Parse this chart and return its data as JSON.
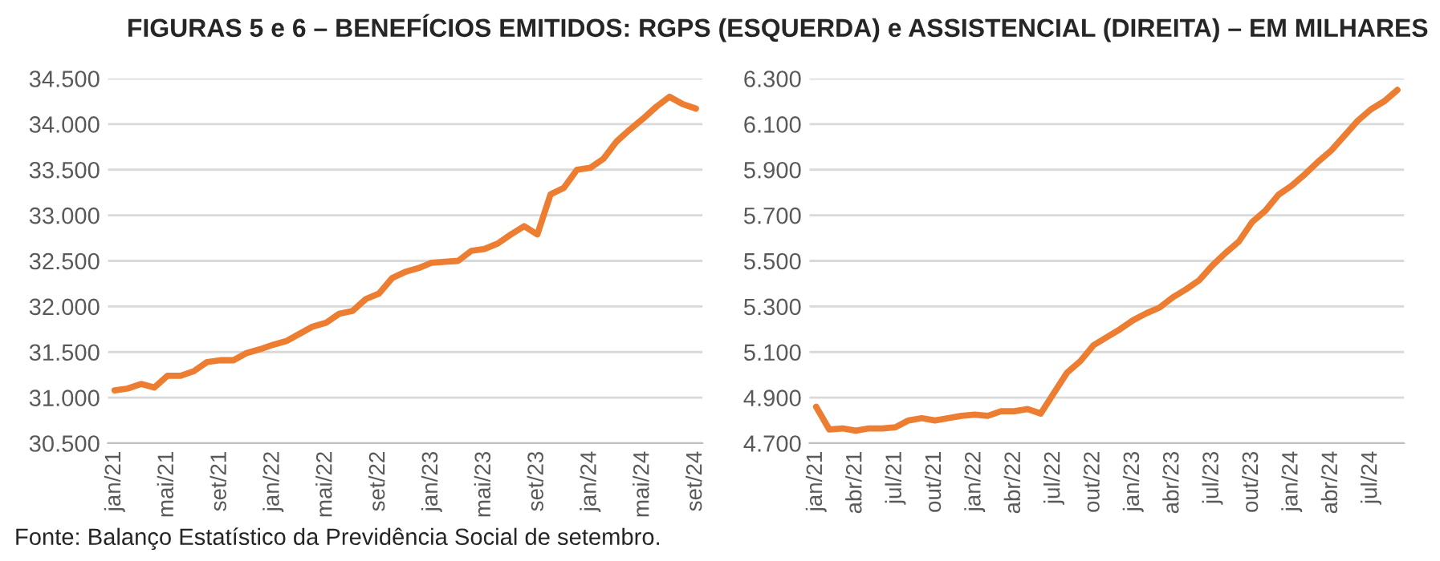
{
  "chart_data": [
    {
      "type": "line",
      "title": "FIGURAS 5 e 6 – BENEFÍCIOS EMITIDOS: RGPS (ESQUERDA) e ASSISTENCIAL (DIREITA) – EM MILHARES",
      "annotations": [
        "Fonte: Balanço Estatístico da Previdência Social de setembro."
      ],
      "categories": [
        "jan/21",
        null,
        null,
        null,
        "mai/21",
        null,
        null,
        null,
        "set/21",
        null,
        null,
        null,
        "jan/22",
        null,
        null,
        null,
        "mai/22",
        null,
        null,
        null,
        "set/22",
        null,
        null,
        null,
        "jan/23",
        null,
        null,
        null,
        "mai/23",
        null,
        null,
        null,
        "set/23",
        null,
        null,
        null,
        "jan/24",
        null,
        null,
        null,
        "mai/24",
        null,
        null,
        null,
        "set/24"
      ],
      "series": [
        {
          "color": "#ed7d31",
          "values": [
            31080,
            31100,
            31150,
            31110,
            31240,
            31240,
            31290,
            31390,
            31410,
            31410,
            31490,
            31530,
            31580,
            31620,
            31700,
            31780,
            31820,
            31920,
            31950,
            32080,
            32140,
            32310,
            32380,
            32420,
            32480,
            32490,
            32500,
            32610,
            32630,
            32690,
            32790,
            32880,
            32790,
            33230,
            33300,
            33500,
            33520,
            33620,
            33810,
            33940,
            34060,
            34190,
            34300,
            34220,
            34170
          ]
        }
      ],
      "ylim": [
        30500,
        34500
      ],
      "yticks": [
        {
          "value": 30500,
          "label": "30.500"
        },
        {
          "value": 31000,
          "label": "31.000"
        },
        {
          "value": 31500,
          "label": "31.500"
        },
        {
          "value": 32000,
          "label": "32.000"
        },
        {
          "value": 32500,
          "label": "32.500"
        },
        {
          "value": 33000,
          "label": "33.000"
        },
        {
          "value": 33500,
          "label": "33.500"
        },
        {
          "value": 34000,
          "label": "34.000"
        },
        {
          "value": 34500,
          "label": "34.500"
        }
      ],
      "grid": "y",
      "legend": false,
      "marker": "none",
      "line_style": "solid"
    },
    {
      "type": "line",
      "categories": [
        "jan/21",
        null,
        null,
        "abr/21",
        null,
        null,
        "jul/21",
        null,
        null,
        "out/21",
        null,
        null,
        "jan/22",
        null,
        null,
        "abr/22",
        null,
        null,
        "jul/22",
        null,
        null,
        "out/22",
        null,
        null,
        "jan/23",
        null,
        null,
        "abr/23",
        null,
        null,
        "jul/23",
        null,
        null,
        "out/23",
        null,
        null,
        "jan/24",
        null,
        null,
        "abr/24",
        null,
        null,
        "jul/24",
        null,
        null
      ],
      "series": [
        {
          "color": "#ed7d31",
          "values": [
            4860,
            4760,
            4765,
            4755,
            4765,
            4765,
            4770,
            4800,
            4810,
            4800,
            4810,
            4820,
            4825,
            4820,
            4840,
            4840,
            4850,
            4830,
            4920,
            5010,
            5060,
            5130,
            5165,
            5200,
            5240,
            5270,
            5295,
            5340,
            5375,
            5415,
            5480,
            5535,
            5585,
            5670,
            5720,
            5790,
            5830,
            5880,
            5935,
            5985,
            6050,
            6115,
            6165,
            6200,
            6250
          ]
        }
      ],
      "ylim": [
        4700,
        6300
      ],
      "yticks": [
        {
          "value": 4700,
          "label": "4.700"
        },
        {
          "value": 4900,
          "label": "4.900"
        },
        {
          "value": 5100,
          "label": "5.100"
        },
        {
          "value": 5300,
          "label": "5.300"
        },
        {
          "value": 5500,
          "label": "5.500"
        },
        {
          "value": 5700,
          "label": "5.700"
        },
        {
          "value": 5900,
          "label": "5.900"
        },
        {
          "value": 6100,
          "label": "6.100"
        },
        {
          "value": 6300,
          "label": "6.300"
        }
      ],
      "grid": "y",
      "legend": false,
      "marker": "none",
      "line_style": "solid"
    }
  ]
}
